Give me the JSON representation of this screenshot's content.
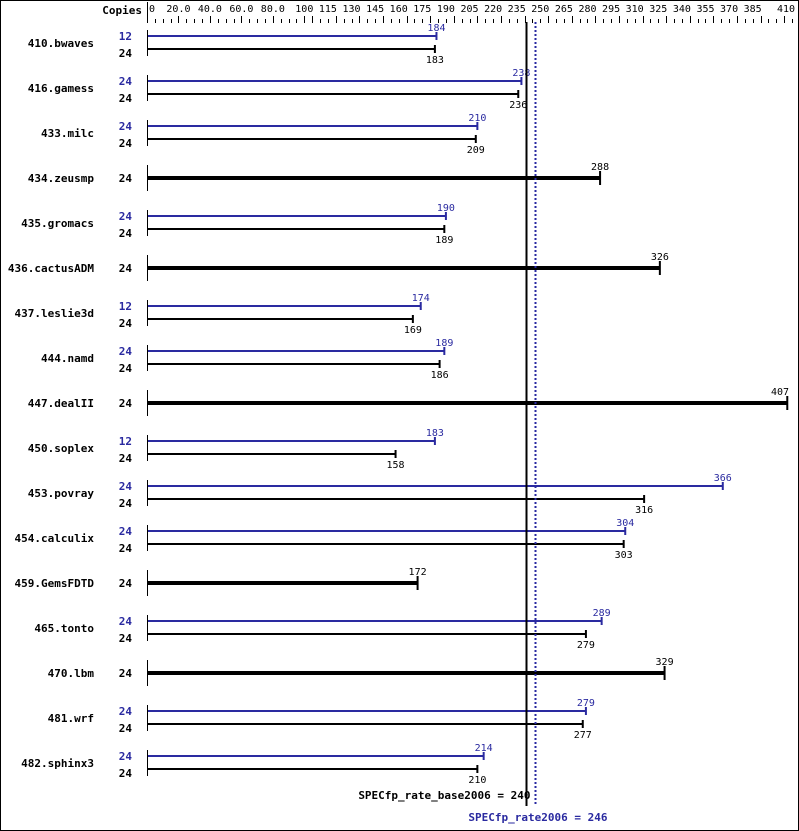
{
  "chart_data": {
    "type": "bar",
    "orientation": "horizontal",
    "title": "",
    "copies_header": "Copies",
    "xlabel": "",
    "ylabel": "",
    "xlim": [
      0,
      410
    ],
    "tick_labels": [
      "0",
      "20.0",
      "40.0",
      "60.0",
      "80.0",
      "100",
      "115",
      "130",
      "145",
      "160",
      "175",
      "190",
      "205",
      "220",
      "235",
      "250",
      "265",
      "280",
      "295",
      "310",
      "325",
      "340",
      "355",
      "370",
      "385",
      "410"
    ],
    "tick_values": [
      0,
      20,
      40,
      60,
      80,
      100,
      115,
      130,
      145,
      160,
      175,
      190,
      205,
      220,
      235,
      250,
      265,
      280,
      295,
      310,
      325,
      340,
      355,
      370,
      385,
      410
    ],
    "colors": {
      "peak": "#2a2aa0",
      "base": "#000000",
      "peak_line": "#2a2aa0",
      "base_line": "#000000"
    },
    "series": [
      {
        "name": "peak",
        "color": "#2a2aa0"
      },
      {
        "name": "base",
        "color": "#000000"
      }
    ],
    "benchmarks": [
      {
        "name": "410.bwaves",
        "peak_copies": "12",
        "peak": 184,
        "base_copies": "24",
        "base": 183
      },
      {
        "name": "416.gamess",
        "peak_copies": "24",
        "peak": 238,
        "base_copies": "24",
        "base": 236
      },
      {
        "name": "433.milc",
        "peak_copies": "24",
        "peak": 210,
        "base_copies": "24",
        "base": 209
      },
      {
        "name": "434.zeusmp",
        "peak_copies": null,
        "peak": null,
        "base_copies": "24",
        "base": 288
      },
      {
        "name": "435.gromacs",
        "peak_copies": "24",
        "peak": 190,
        "base_copies": "24",
        "base": 189
      },
      {
        "name": "436.cactusADM",
        "peak_copies": null,
        "peak": null,
        "base_copies": "24",
        "base": 326
      },
      {
        "name": "437.leslie3d",
        "peak_copies": "12",
        "peak": 174,
        "base_copies": "24",
        "base": 169
      },
      {
        "name": "444.namd",
        "peak_copies": "24",
        "peak": 189,
        "base_copies": "24",
        "base": 186
      },
      {
        "name": "447.dealII",
        "peak_copies": null,
        "peak": null,
        "base_copies": "24",
        "base": 407
      },
      {
        "name": "450.soplex",
        "peak_copies": "12",
        "peak": 183,
        "base_copies": "24",
        "base": 158
      },
      {
        "name": "453.povray",
        "peak_copies": "24",
        "peak": 366,
        "base_copies": "24",
        "base": 316
      },
      {
        "name": "454.calculix",
        "peak_copies": "24",
        "peak": 304,
        "base_copies": "24",
        "base": 303
      },
      {
        "name": "459.GemsFDTD",
        "peak_copies": null,
        "peak": null,
        "base_copies": "24",
        "base": 172
      },
      {
        "name": "465.tonto",
        "peak_copies": "24",
        "peak": 289,
        "base_copies": "24",
        "base": 279
      },
      {
        "name": "470.lbm",
        "peak_copies": null,
        "peak": null,
        "base_copies": "24",
        "base": 329
      },
      {
        "name": "481.wrf",
        "peak_copies": "24",
        "peak": 279,
        "base_copies": "24",
        "base": 277
      },
      {
        "name": "482.sphinx3",
        "peak_copies": "24",
        "peak": 214,
        "base_copies": "24",
        "base": 210
      }
    ],
    "reference_lines": [
      {
        "label": "SPECfp_rate_base2006 = 240",
        "value": 240,
        "style": "solid",
        "color": "#000000"
      },
      {
        "label": "SPECfp_rate2006 = 246",
        "value": 246,
        "style": "dotted",
        "color": "#2a2aa0"
      }
    ]
  }
}
